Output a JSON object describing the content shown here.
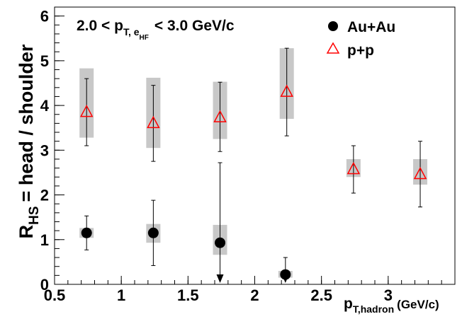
{
  "chart_data": {
    "type": "scatter",
    "annotation": {
      "prefix": "2.0 < p",
      "sub1": "T, e",
      "sub2": "HF",
      "suffix": "< 3.0 GeV/c"
    },
    "xlabel": {
      "main": "p",
      "sub": "T,hadron",
      "unit": "(GeV/c)"
    },
    "ylabel": {
      "main": "R",
      "sub": "HS",
      "rest": "= head / shoulder"
    },
    "xlim": [
      0.5,
      3.5
    ],
    "ylim": [
      0,
      6.2
    ],
    "x_ticks": [
      "0.5",
      "1",
      "1.5",
      "2",
      "2.5",
      "3"
    ],
    "x_tick_values": [
      0.5,
      1,
      1.5,
      2,
      2.5,
      3
    ],
    "y_ticks": [
      "0",
      "1",
      "2",
      "3",
      "4",
      "5",
      "6"
    ],
    "y_tick_values": [
      0,
      1,
      2,
      3,
      4,
      5,
      6
    ],
    "legend": {
      "position": "top-right",
      "entries": [
        {
          "label": "Au+Au",
          "marker": "filled-circle",
          "color": "#000000"
        },
        {
          "label": "p+p",
          "marker": "open-triangle",
          "color": "#ff0000"
        }
      ]
    },
    "series": [
      {
        "name": "Au+Au",
        "color": "#000000",
        "points": [
          {
            "x": 0.74,
            "y": 1.15,
            "err_low": 0.77,
            "err_high": 1.53,
            "sys_low": 1.04,
            "sys_high": 1.26
          },
          {
            "x": 1.24,
            "y": 1.15,
            "err_low": 0.42,
            "err_high": 1.88,
            "sys_low": 0.93,
            "sys_high": 1.35
          },
          {
            "x": 1.74,
            "y": 0.93,
            "err_low": 0.1,
            "err_high": 2.72,
            "sys_low": 0.66,
            "sys_high": 1.33,
            "upper_limit_arrow": true
          },
          {
            "x": 2.23,
            "y": 0.22,
            "err_low": 0.1,
            "err_high": 0.6,
            "sys_low": 0.15,
            "sys_high": 0.3,
            "upper_limit_arrow": true
          }
        ]
      },
      {
        "name": "p+p",
        "color": "#ff0000",
        "points": [
          {
            "x": 0.74,
            "y": 3.85,
            "err_low": 3.1,
            "err_high": 4.6,
            "sys_low": 3.28,
            "sys_high": 4.83
          },
          {
            "x": 1.24,
            "y": 3.6,
            "err_low": 2.75,
            "err_high": 4.45,
            "sys_low": 3.05,
            "sys_high": 4.62
          },
          {
            "x": 1.74,
            "y": 3.73,
            "err_low": 2.97,
            "err_high": 4.52,
            "sys_low": 3.25,
            "sys_high": 4.53
          },
          {
            "x": 2.24,
            "y": 4.3,
            "err_low": 3.32,
            "err_high": 5.28,
            "sys_low": 3.7,
            "sys_high": 5.28
          },
          {
            "x": 2.74,
            "y": 2.57,
            "err_low": 2.04,
            "err_high": 3.1,
            "sys_low": 2.4,
            "sys_high": 2.8
          },
          {
            "x": 3.24,
            "y": 2.46,
            "err_low": 1.73,
            "err_high": 3.2,
            "sys_low": 2.23,
            "sys_high": 2.8
          }
        ]
      }
    ],
    "grid": false
  }
}
